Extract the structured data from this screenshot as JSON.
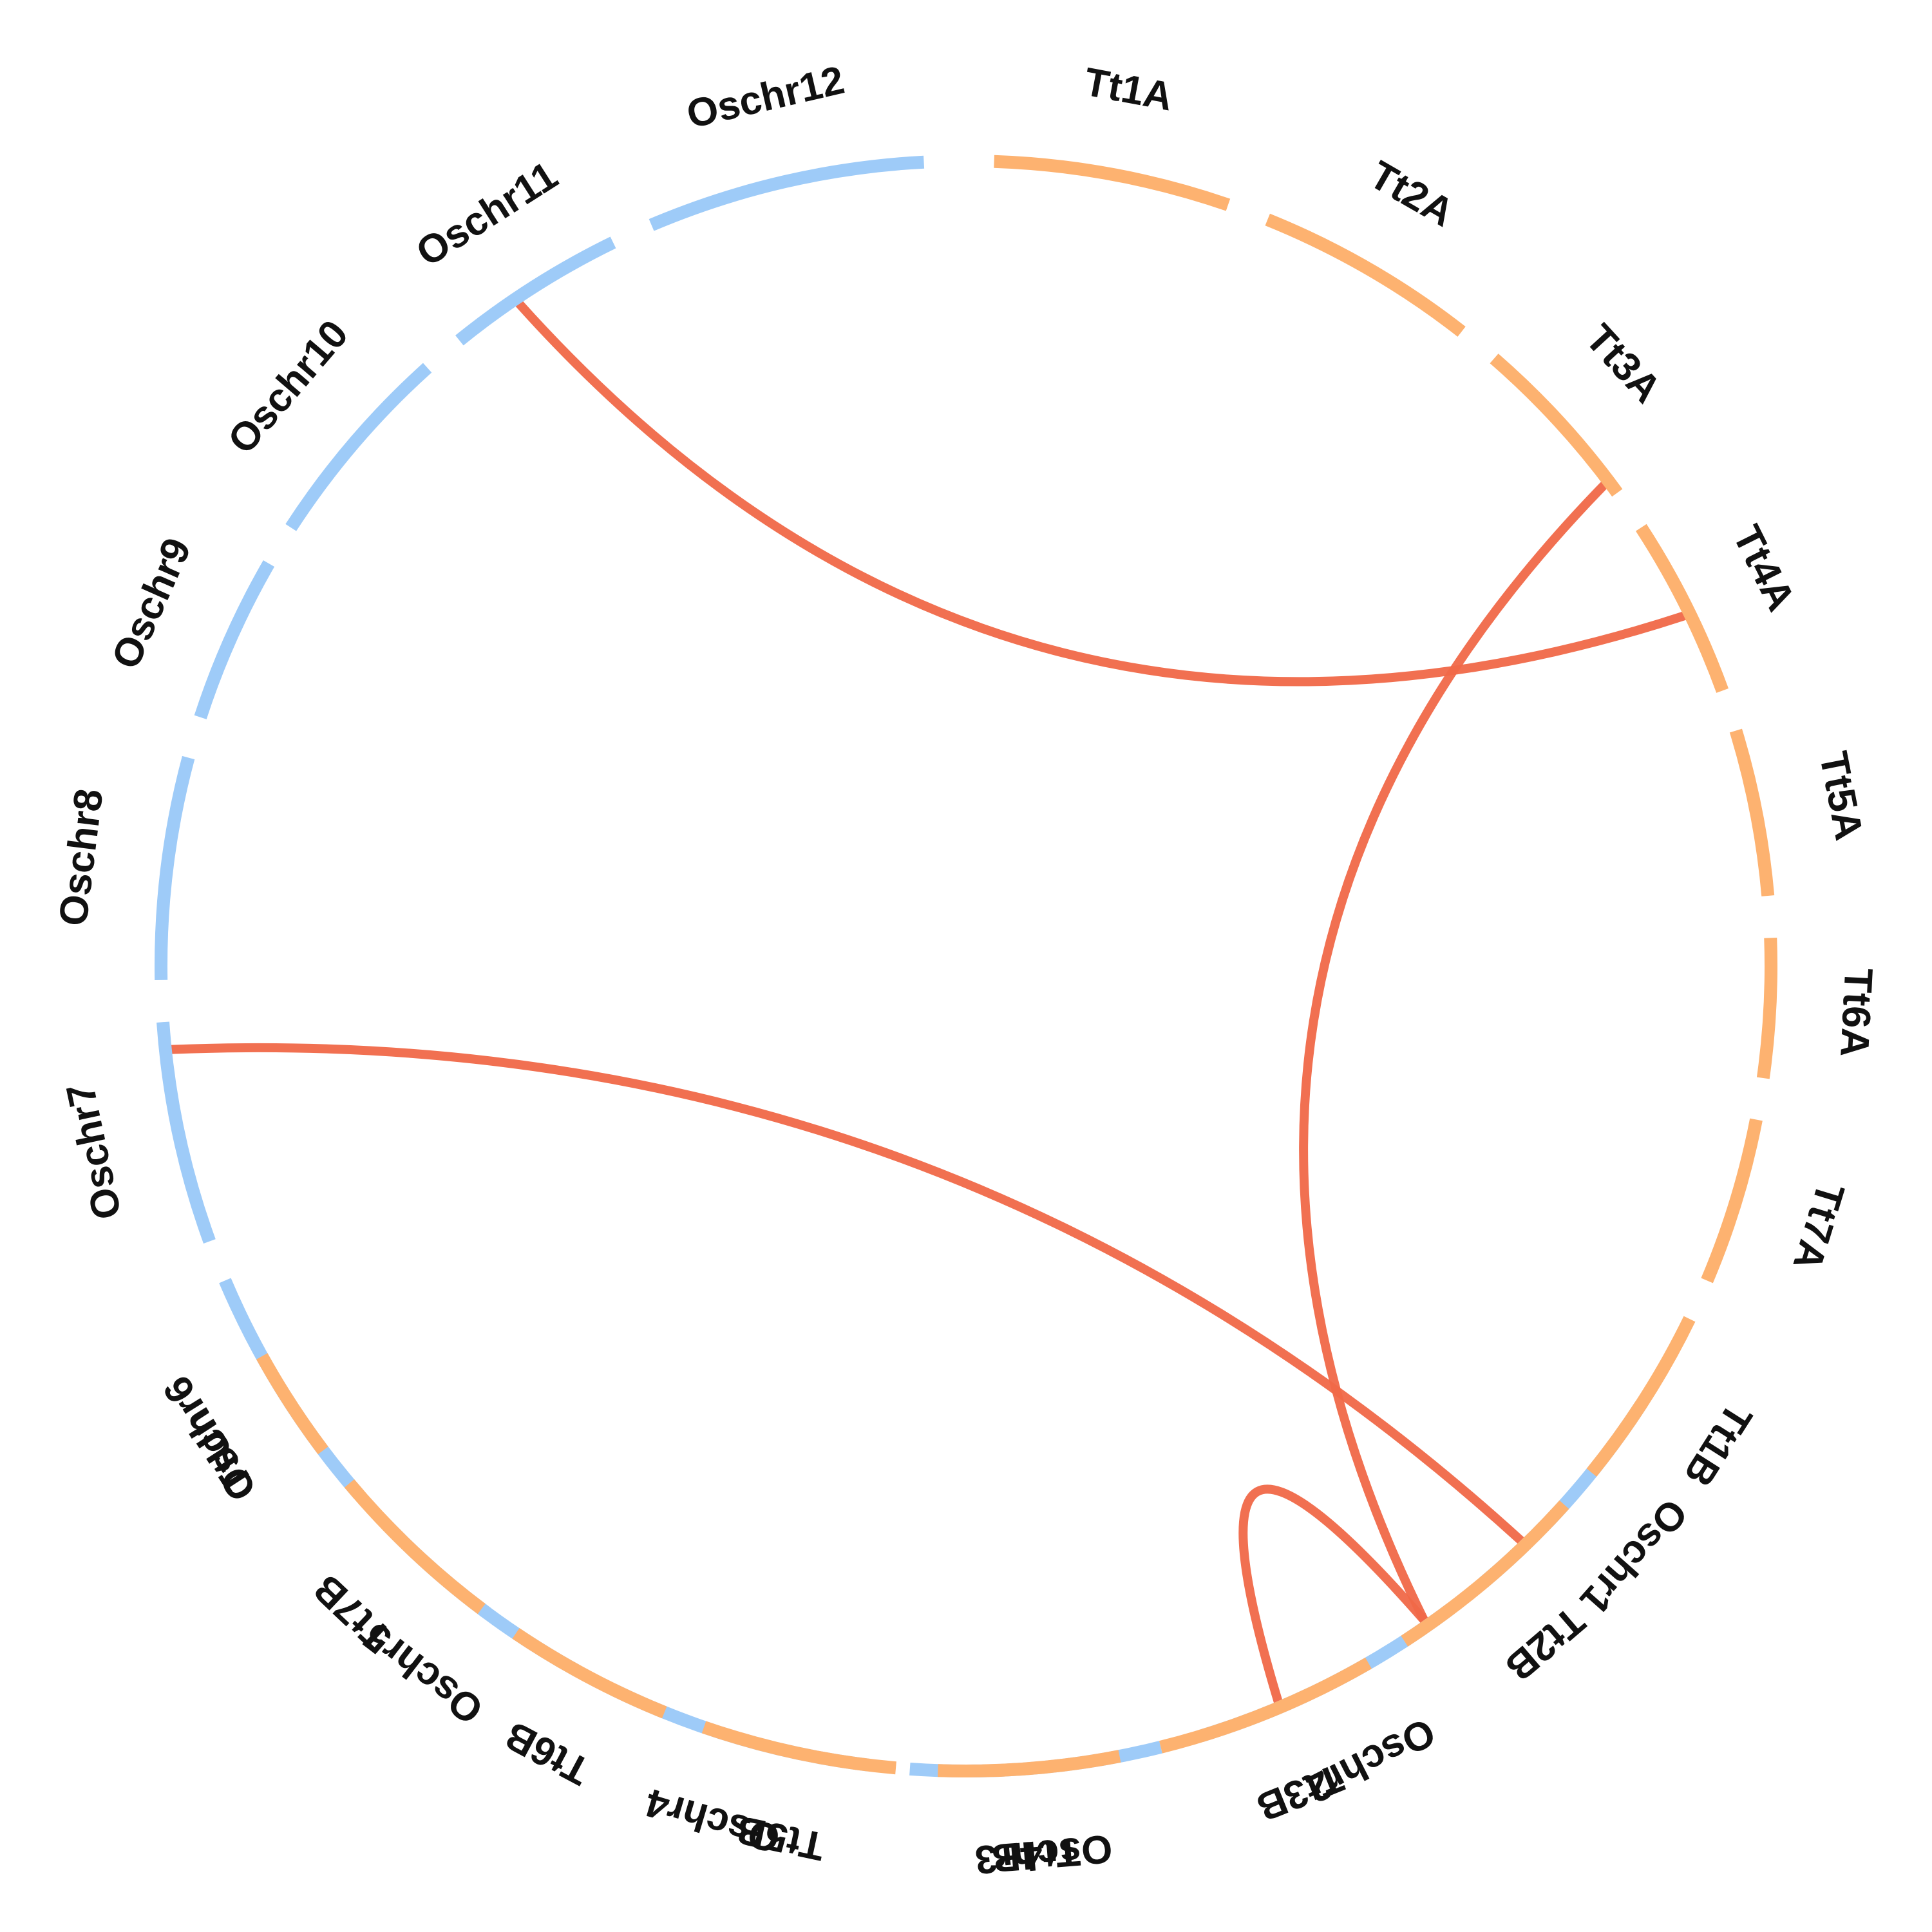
{
  "chart_data": {
    "type": "circos",
    "colors": {
      "rice": "#9ecbf8",
      "wheat": "#fdb270",
      "link": "#f06848",
      "label": "#111111"
    },
    "segments": [
      {
        "id": "Oschr12",
        "label": "Oschr12",
        "start_deg": -3,
        "end_deg": -23,
        "group": "rice"
      },
      {
        "id": "Oschr11",
        "label": "Oschr11",
        "start_deg": -26,
        "end_deg": -39,
        "group": "rice"
      },
      {
        "id": "Oschr10",
        "label": "Oschr10",
        "start_deg": -42,
        "end_deg": -57,
        "group": "rice"
      },
      {
        "id": "Oschr9",
        "label": "Oschr9",
        "start_deg": -60,
        "end_deg": -72,
        "group": "rice"
      },
      {
        "id": "Oschr8",
        "label": "Oschr8",
        "start_deg": -75,
        "end_deg": -91,
        "group": "rice"
      },
      {
        "id": "Oschr7",
        "label": "Oschr7",
        "start_deg": -94,
        "end_deg": -110,
        "group": "rice"
      },
      {
        "id": "Oschr6",
        "label": "Oschr6",
        "start_deg": -113,
        "end_deg": -131,
        "group": "rice"
      },
      {
        "id": "Oschr5",
        "label": "Oschr5",
        "start_deg": -134,
        "end_deg": -151,
        "group": "rice"
      },
      {
        "id": "Oschr4",
        "label": "Oschr4",
        "start_deg": -154,
        "end_deg": -173,
        "group": "rice"
      },
      {
        "id": "Oschr3",
        "label": "Oschr3",
        "start_deg": -176,
        "end_deg": -194,
        "group": "rice"
      },
      {
        "id": "Oschr2",
        "label": "Oschr2",
        "start_deg": -197,
        "end_deg": -217,
        "group": "rice"
      },
      {
        "id": "Oschr1",
        "label": "Oschr1",
        "start_deg": -220,
        "end_deg": -237,
        "group": "rice"
      },
      {
        "id": "Tt1A",
        "label": "Tt1A",
        "start_deg": 2,
        "end_deg": 19,
        "group": "wheat"
      },
      {
        "id": "Tt2A",
        "label": "Tt2A",
        "start_deg": 22,
        "end_deg": 38,
        "group": "wheat"
      },
      {
        "id": "Tt3A",
        "label": "Tt3A",
        "start_deg": 41,
        "end_deg": 54,
        "group": "wheat"
      },
      {
        "id": "Tt4A",
        "label": "Tt4A",
        "start_deg": 57,
        "end_deg": 70,
        "group": "wheat"
      },
      {
        "id": "Tt5A",
        "label": "Tt5A",
        "start_deg": 73,
        "end_deg": 85,
        "group": "wheat"
      },
      {
        "id": "Tt6A",
        "label": "Tt6A",
        "start_deg": 88,
        "end_deg": 98,
        "group": "wheat"
      },
      {
        "id": "Tt7A",
        "label": "Tt7A",
        "start_deg": 101,
        "end_deg": 113,
        "group": "wheat"
      },
      {
        "id": "Tt1B",
        "label": "Tt1B",
        "start_deg": 116,
        "end_deg": 129,
        "group": "wheat"
      },
      {
        "id": "Tt2B",
        "label": "Tt2B",
        "start_deg": 132,
        "end_deg": 147,
        "group": "wheat"
      },
      {
        "id": "Tt3B",
        "label": "Tt3B",
        "start_deg": 150,
        "end_deg": 166,
        "group": "wheat"
      },
      {
        "id": "Tt4B",
        "label": "Tt4B",
        "start_deg": 169,
        "end_deg": 182,
        "group": "wheat"
      },
      {
        "id": "Tt5B",
        "label": "Tt5B",
        "start_deg": 185,
        "end_deg": 199,
        "group": "wheat"
      },
      {
        "id": "Tt6B",
        "label": "Tt6B",
        "start_deg": 202,
        "end_deg": 214,
        "group": "wheat"
      },
      {
        "id": "Tt7B",
        "label": "Tt7B",
        "start_deg": 217,
        "end_deg": 230,
        "group": "wheat"
      },
      {
        "id": "TtUn",
        "label": "TtUn",
        "start_deg": 233,
        "end_deg": 241,
        "group": "wheat"
      }
    ],
    "links": [
      {
        "from": "Oschr11",
        "from_deg": -34,
        "to": "Tt4A",
        "to_deg": 64
      },
      {
        "from": "Oschr7",
        "from_deg": -96,
        "to": "Tt2B",
        "to_deg": 136
      },
      {
        "from": "Oschr2",
        "from_deg": -215,
        "to": "Tt3A",
        "to_deg": 53
      },
      {
        "from": "Oschr2",
        "from_deg": -215,
        "to": "Tt3B",
        "to_deg": 157
      }
    ]
  }
}
